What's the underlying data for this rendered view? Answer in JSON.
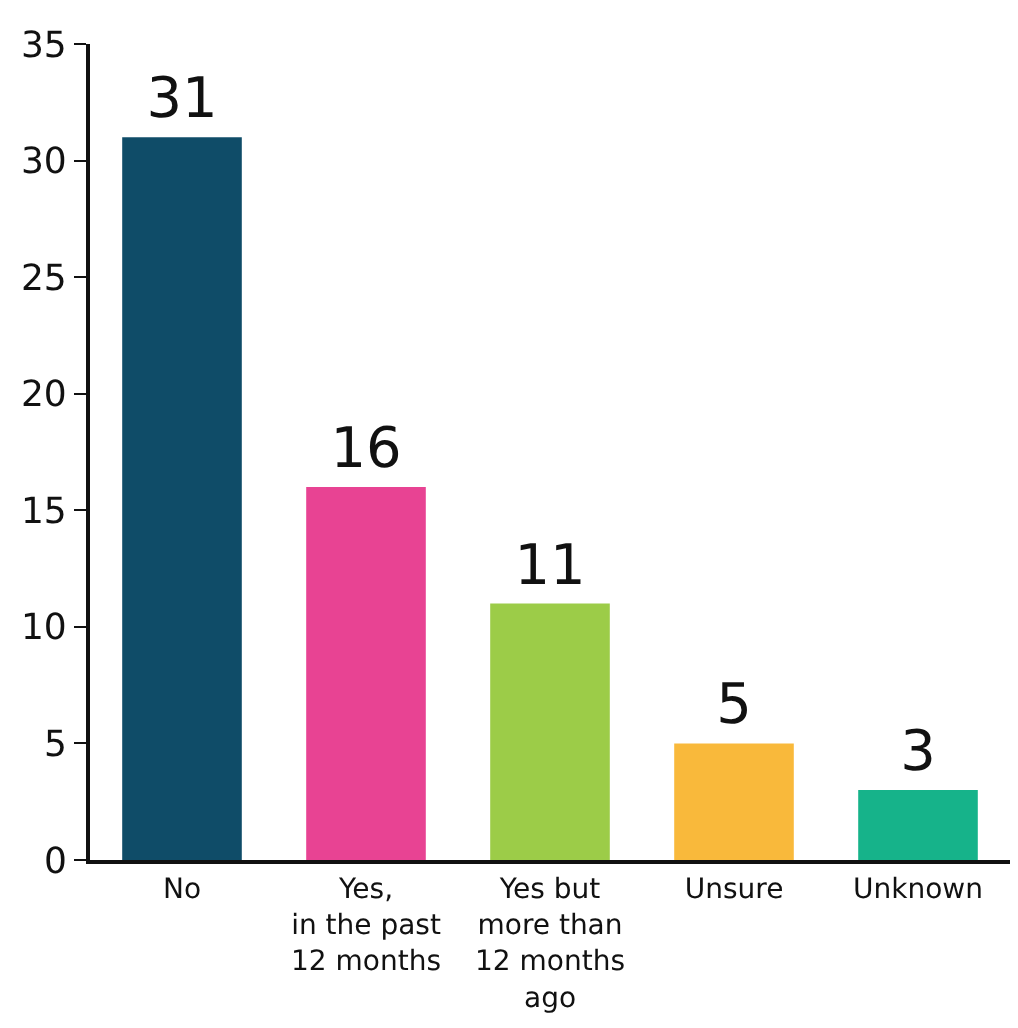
{
  "chart_data": {
    "type": "bar",
    "categories": [
      "No",
      "Yes,\nin the past\n12 months",
      "Yes but\nmore than\n12 months\nago",
      "Unsure",
      "Unknown"
    ],
    "values": [
      31,
      16,
      11,
      5,
      3
    ],
    "colors": [
      "#0f4c68",
      "#e84393",
      "#9ccc48",
      "#f9b93b",
      "#16b38a"
    ],
    "ylim": [
      0,
      35
    ],
    "yticks": [
      0,
      5,
      10,
      15,
      20,
      25,
      30,
      35
    ],
    "grid": false,
    "legend": false,
    "data_labels": true
  }
}
